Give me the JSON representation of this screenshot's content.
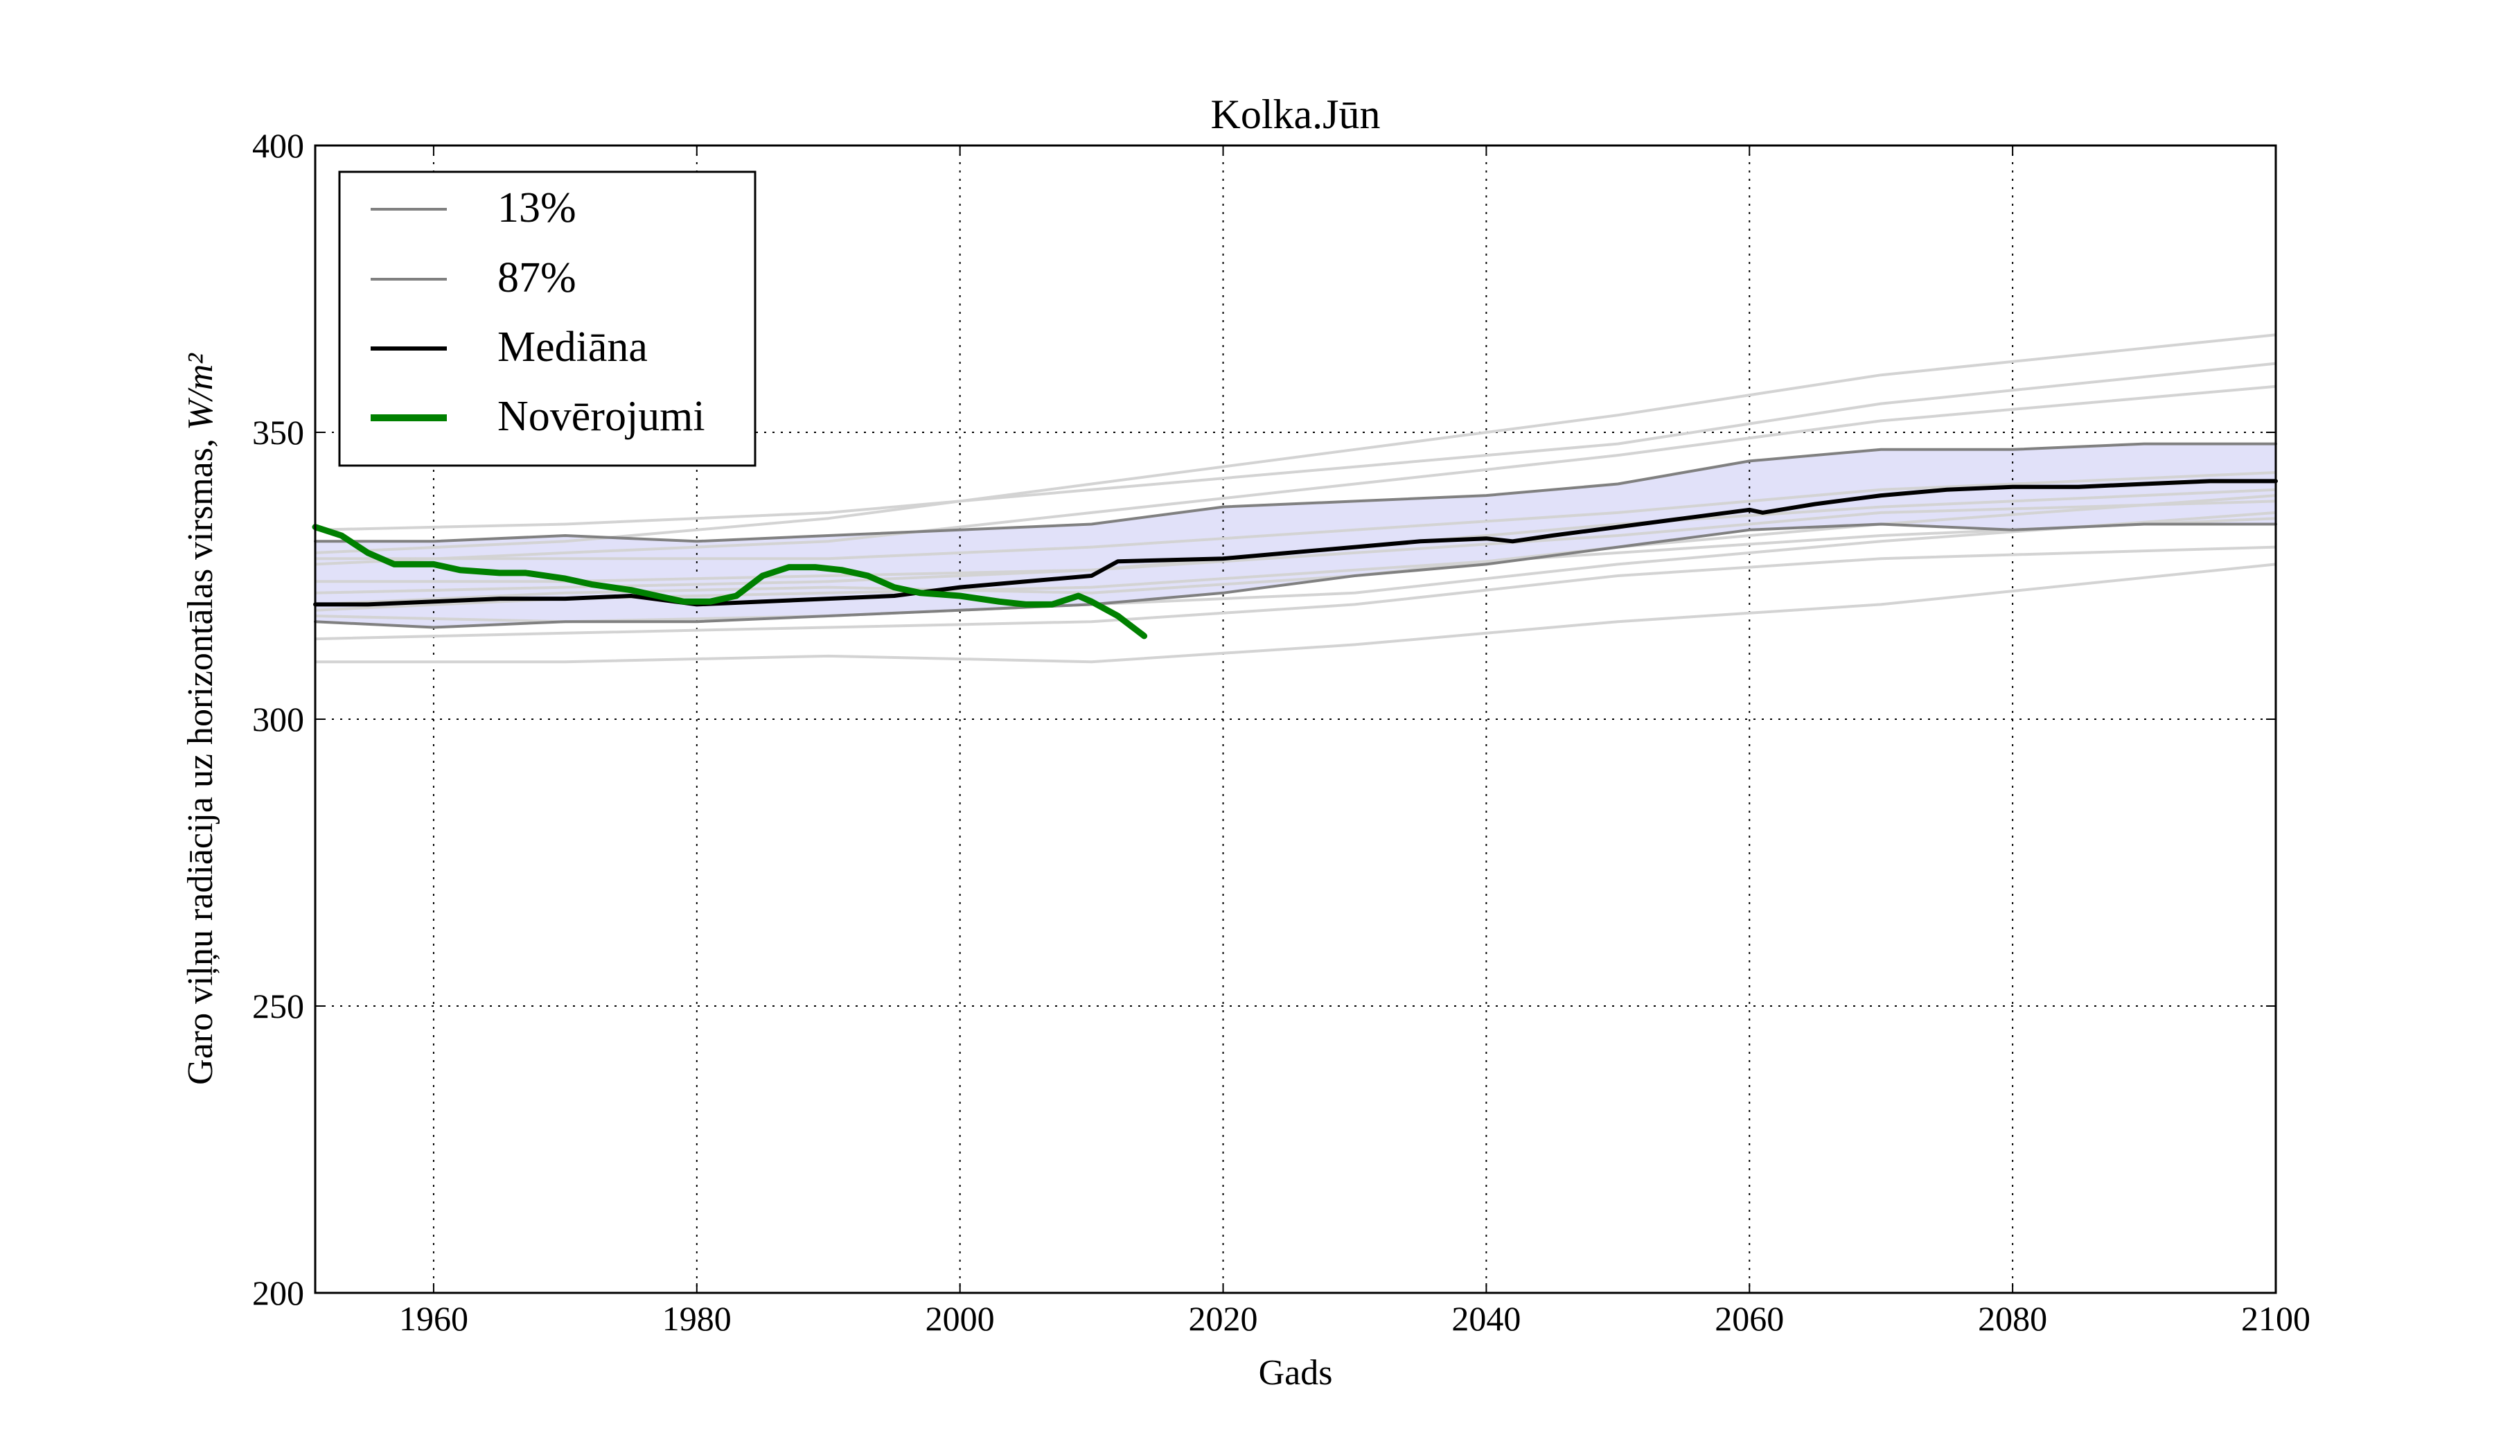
{
  "chart_data": {
    "type": "line",
    "title": "Kolka.Jūn",
    "xlabel": "Gads",
    "ylabel": "Garo viļņu radiācija uz horizontālas virsmas,",
    "ylabel_unit": "W/m²",
    "xlim": [
      1951,
      2100
    ],
    "ylim": [
      200,
      400
    ],
    "xticks": [
      1960,
      1980,
      2000,
      2020,
      2040,
      2060,
      2080,
      2100
    ],
    "yticks": [
      200,
      250,
      300,
      350,
      400
    ],
    "grid": true,
    "legend_position": "top-left",
    "colors": {
      "band": "#dcdcf8",
      "percentile": "#808080",
      "ensemble": "#d3d3d3",
      "median": "#000000",
      "observations": "#008000"
    },
    "legend": [
      {
        "label": "13%",
        "style": "percentile"
      },
      {
        "label": "87%",
        "style": "percentile"
      },
      {
        "label": "Mediāna",
        "style": "median"
      },
      {
        "label": "Novērojumi",
        "style": "observations"
      }
    ],
    "series": [
      {
        "name": "13%",
        "role": "percentile",
        "x": [
          1951,
          1960,
          1970,
          1980,
          1990,
          2000,
          2010,
          2020,
          2030,
          2040,
          2050,
          2060,
          2070,
          2080,
          2090,
          2100
        ],
        "y": [
          317,
          316,
          317,
          317,
          318,
          319,
          320,
          322,
          325,
          327,
          330,
          333,
          334,
          333,
          334,
          334
        ]
      },
      {
        "name": "87%",
        "role": "percentile",
        "x": [
          1951,
          1960,
          1970,
          1980,
          1990,
          2000,
          2010,
          2020,
          2030,
          2040,
          2050,
          2060,
          2070,
          2080,
          2090,
          2100
        ],
        "y": [
          331,
          331,
          332,
          331,
          332,
          333,
          334,
          337,
          338,
          339,
          341,
          345,
          347,
          347,
          348,
          348
        ]
      },
      {
        "name": "Mediāna",
        "role": "median",
        "x": [
          1951,
          1955,
          1960,
          1965,
          1970,
          1975,
          1980,
          1985,
          1990,
          1995,
          2000,
          2005,
          2010,
          2012,
          2020,
          2025,
          2030,
          2035,
          2040,
          2042,
          2045,
          2050,
          2055,
          2060,
          2061,
          2065,
          2070,
          2075,
          2080,
          2085,
          2090,
          2095,
          2100
        ],
        "y": [
          320,
          320,
          320.5,
          321,
          321,
          321.5,
          320,
          320.5,
          321,
          321.5,
          323,
          324,
          325,
          327.5,
          328,
          329,
          330,
          331,
          331.5,
          331,
          332,
          333.5,
          335,
          336.5,
          336,
          337.5,
          339,
          340,
          340.5,
          340.5,
          341,
          341.5,
          341.5
        ]
      },
      {
        "name": "Novērojumi",
        "role": "observations",
        "x": [
          1951,
          1953,
          1955,
          1957,
          1960,
          1962,
          1965,
          1967,
          1970,
          1972,
          1975,
          1977,
          1979,
          1981,
          1983,
          1985,
          1987,
          1989,
          1991,
          1993,
          1995,
          1997,
          2000,
          2003,
          2005,
          2007,
          2009,
          2010,
          2012,
          2014
        ],
        "y": [
          333.5,
          332,
          329,
          327,
          327,
          326,
          325.5,
          325.5,
          324.5,
          323.5,
          322.5,
          321.5,
          320.5,
          320.5,
          321.5,
          325,
          326.5,
          326.5,
          326,
          325,
          323,
          322,
          321.5,
          320.5,
          320,
          320,
          321.5,
          320.5,
          318,
          314.5
        ]
      },
      {
        "role": "ensemble",
        "x": [
          1951,
          1970,
          1990,
          2010,
          2030,
          2050,
          2070,
          2100
        ],
        "y": [
          310,
          310,
          311,
          310,
          313,
          317,
          320,
          327
        ]
      },
      {
        "role": "ensemble",
        "x": [
          1951,
          1970,
          1990,
          2010,
          2030,
          2050,
          2070,
          2100
        ],
        "y": [
          314,
          315,
          316,
          317,
          320,
          325,
          328,
          330
        ]
      },
      {
        "role": "ensemble",
        "x": [
          1951,
          1970,
          1990,
          2010,
          2030,
          2050,
          2070,
          2100
        ],
        "y": [
          319,
          321,
          322,
          323,
          326,
          329,
          332,
          335
        ]
      },
      {
        "role": "ensemble",
        "x": [
          1951,
          1970,
          1990,
          2010,
          2030,
          2050,
          2070,
          2100
        ],
        "y": [
          324,
          324,
          325,
          326,
          329,
          332,
          336,
          338
        ]
      },
      {
        "role": "ensemble",
        "x": [
          1951,
          1970,
          1990,
          2010,
          2030,
          2050,
          2070,
          2100
        ],
        "y": [
          328,
          328,
          328,
          330,
          333,
          336,
          340,
          343
        ]
      },
      {
        "role": "ensemble",
        "x": [
          1951,
          1970,
          1990,
          2010,
          2030,
          2050,
          2070,
          2100
        ],
        "y": [
          333,
          334,
          336,
          340,
          344,
          348,
          355,
          362
        ]
      },
      {
        "role": "ensemble",
        "x": [
          1951,
          1970,
          1990,
          2010,
          2030,
          2050,
          2070,
          2100
        ],
        "y": [
          327,
          329,
          331,
          336,
          341,
          346,
          352,
          358
        ]
      },
      {
        "role": "ensemble",
        "x": [
          1951,
          1970,
          1990,
          2010,
          2030,
          2050,
          2070,
          2100
        ],
        "y": [
          329,
          331,
          335,
          341,
          347,
          353,
          360,
          367
        ]
      },
      {
        "role": "ensemble",
        "x": [
          1951,
          1970,
          1990,
          2010,
          2030,
          2050,
          2070,
          2100
        ],
        "y": [
          322,
          323,
          324,
          326,
          330,
          334,
          337,
          340
        ]
      },
      {
        "role": "ensemble",
        "x": [
          1951,
          1970,
          1990,
          2010,
          2030,
          2050,
          2070,
          2100
        ],
        "y": [
          318,
          317,
          318,
          320,
          322,
          327,
          331,
          336
        ]
      },
      {
        "role": "ensemble",
        "x": [
          1951,
          1970,
          1990,
          2010,
          2030,
          2050,
          2070,
          2100
        ],
        "y": [
          320,
          322,
          323,
          322,
          325,
          330,
          334,
          339
        ]
      }
    ]
  }
}
